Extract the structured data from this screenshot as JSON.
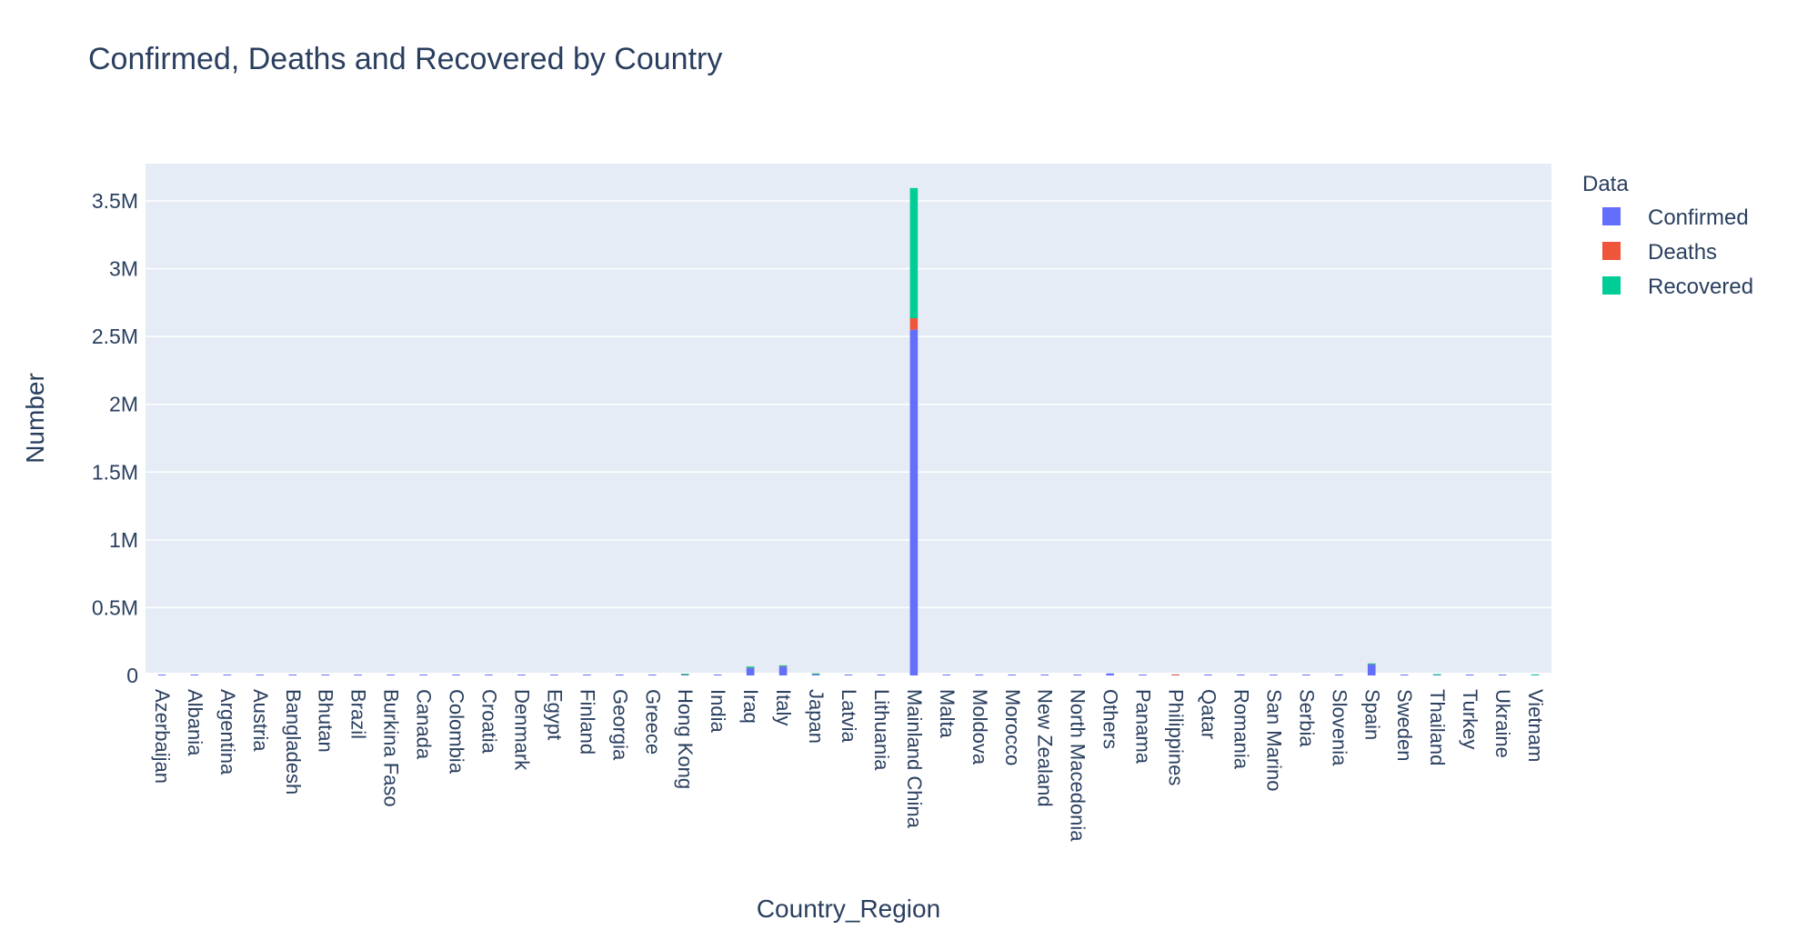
{
  "chart_data": {
    "type": "bar",
    "barmode": "stack",
    "title": "Confirmed, Deaths and Recovered by Country",
    "xlabel": "Country_Region",
    "ylabel": "Number",
    "ylim": [
      0,
      3600000
    ],
    "y_ticks": [
      {
        "value": 0,
        "label": "0"
      },
      {
        "value": 500000,
        "label": "0.5M"
      },
      {
        "value": 1000000,
        "label": "1M"
      },
      {
        "value": 1500000,
        "label": "1.5M"
      },
      {
        "value": 2000000,
        "label": "2M"
      },
      {
        "value": 2500000,
        "label": "2.5M"
      },
      {
        "value": 3000000,
        "label": "3M"
      },
      {
        "value": 3500000,
        "label": "3.5M"
      }
    ],
    "legend_title": "Data",
    "legend_position": "top-right",
    "grid": true,
    "categories": [
      "Azerbaijan",
      "Albania",
      "Argentina",
      "Austria",
      "Bangladesh",
      "Bhutan",
      "Brazil",
      "Burkina Faso",
      "Canada",
      "Colombia",
      "Croatia",
      "Denmark",
      "Egypt",
      "Finland",
      "Georgia",
      "Greece",
      "Hong Kong",
      "India",
      "Iraq",
      "Italy",
      "Japan",
      "Latvia",
      "Lithuania",
      "Mainland China",
      "Malta",
      "Moldova",
      "Morocco",
      "New Zealand",
      "North Macedonia",
      "Others",
      "Panama",
      "Philippines",
      "Qatar",
      "Romania",
      "San Marino",
      "Serbia",
      "Slovenia",
      "Spain",
      "Sweden",
      "Thailand",
      "Turkey",
      "Ukraine",
      "Vietnam"
    ],
    "series": [
      {
        "name": "Confirmed",
        "color": "#636efa",
        "values": [
          1000,
          500,
          500,
          2000,
          500,
          500,
          1000,
          500,
          2000,
          500,
          1000,
          1000,
          1000,
          2000,
          2000,
          2000,
          5000,
          500,
          55000,
          65000,
          8000,
          500,
          500,
          2550000,
          500,
          500,
          500,
          500,
          500,
          15000,
          500,
          1000,
          1000,
          500,
          1000,
          500,
          500,
          80000,
          2000,
          3000,
          500,
          2000,
          1000
        ]
      },
      {
        "name": "Deaths",
        "color": "#ef553b",
        "values": [
          0,
          0,
          0,
          0,
          0,
          0,
          0,
          0,
          0,
          0,
          0,
          0,
          0,
          0,
          0,
          0,
          200,
          0,
          1000,
          3000,
          200,
          0,
          0,
          85000,
          0,
          0,
          0,
          0,
          0,
          0,
          0,
          100,
          0,
          0,
          0,
          0,
          0,
          2000,
          0,
          0,
          0,
          0,
          0
        ]
      },
      {
        "name": "Recovered",
        "color": "#00cc96",
        "values": [
          0,
          0,
          0,
          0,
          0,
          0,
          0,
          0,
          0,
          0,
          0,
          0,
          0,
          0,
          0,
          0,
          2000,
          0,
          10000,
          3000,
          2000,
          0,
          0,
          960000,
          0,
          0,
          0,
          0,
          0,
          0,
          0,
          0,
          0,
          0,
          0,
          0,
          0,
          1000,
          0,
          3000,
          0,
          0,
          1000
        ]
      }
    ]
  }
}
